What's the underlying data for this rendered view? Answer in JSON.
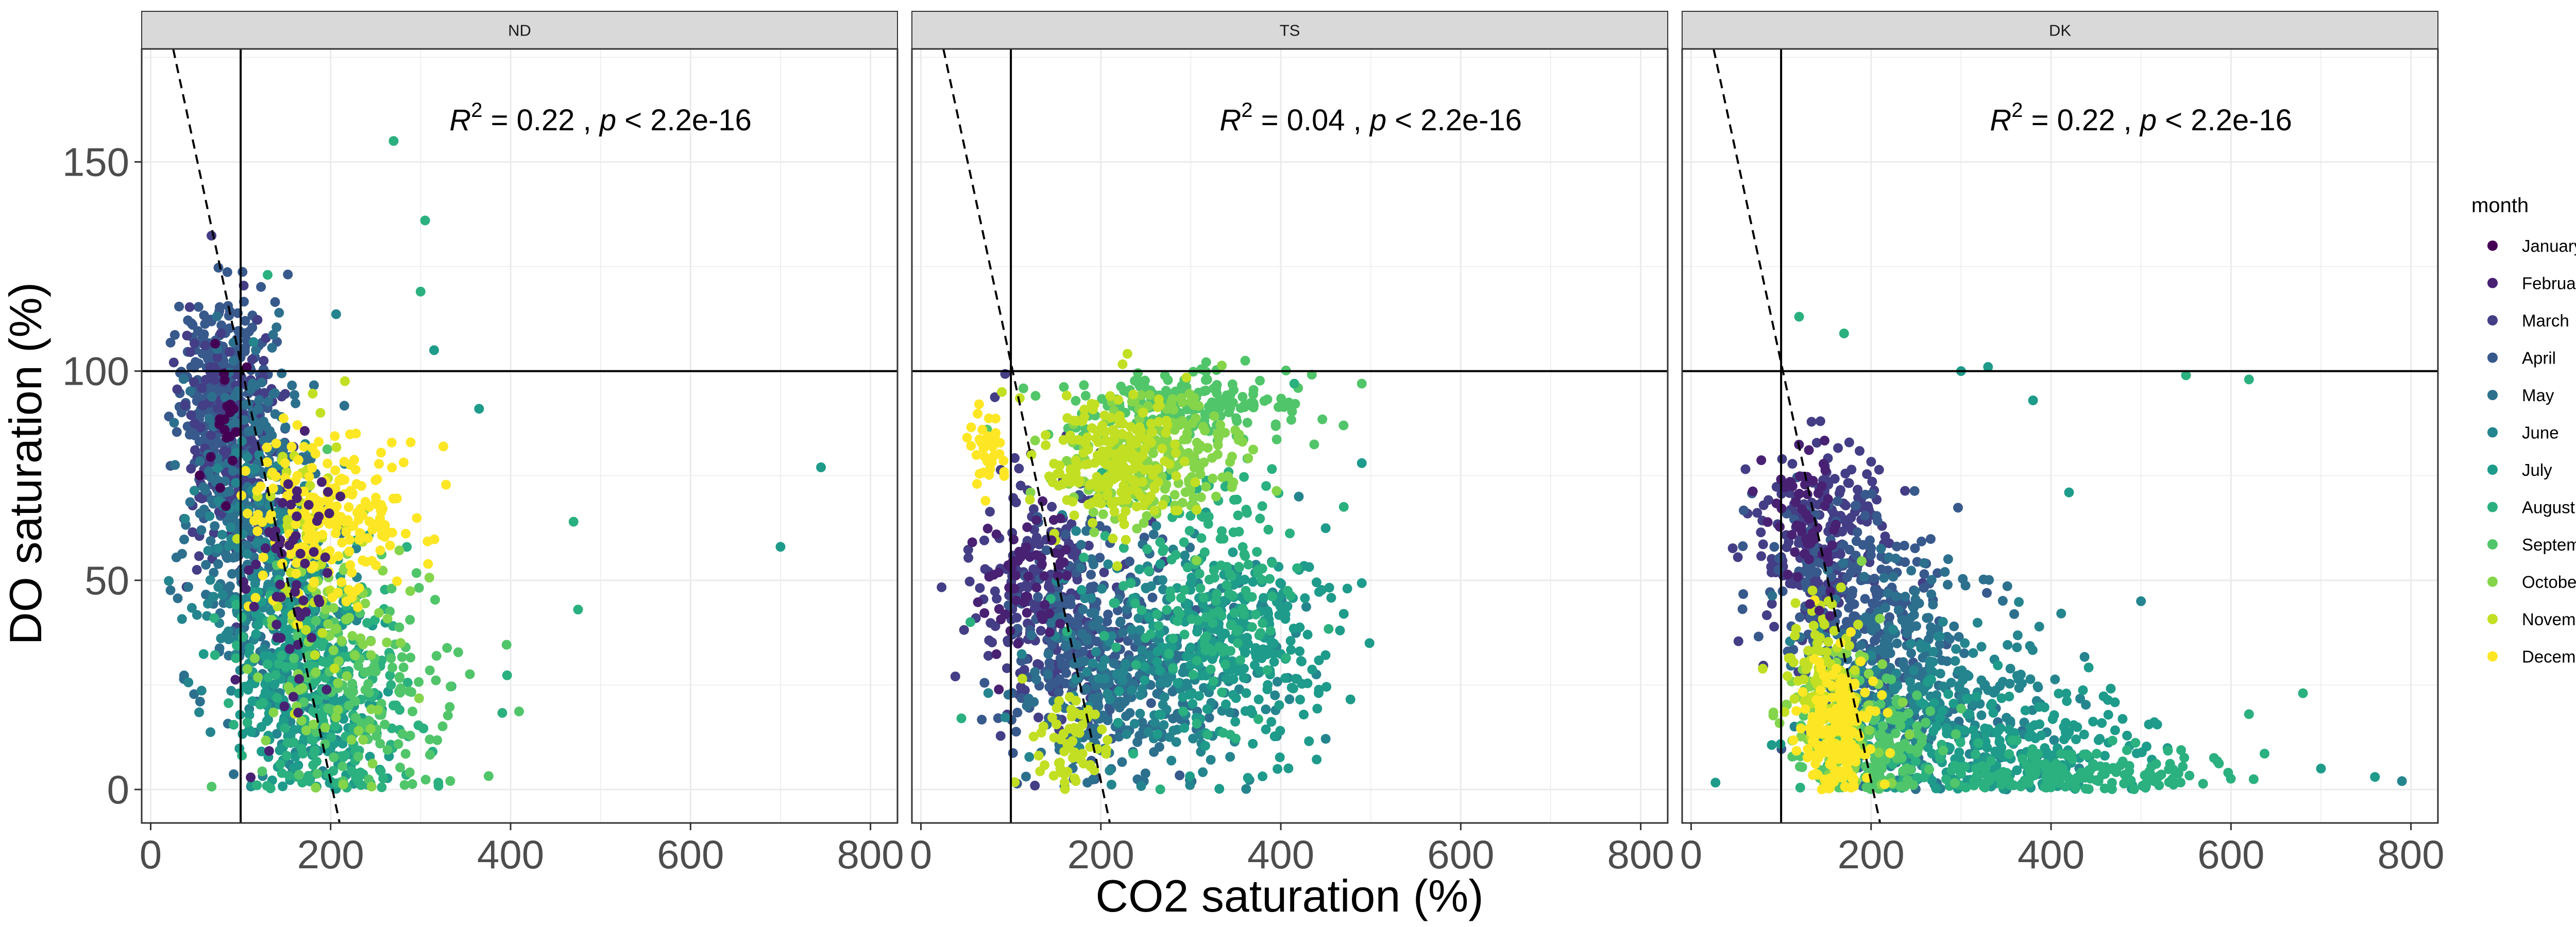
{
  "chart_data": {
    "type": "scatter",
    "xlabel": "CO2 saturation (%)",
    "ylabel": "DO saturation (%)",
    "xlim": [
      -10,
      830
    ],
    "ylim": [
      -8,
      177
    ],
    "x_ticks": [
      0,
      200,
      400,
      600,
      800
    ],
    "y_ticks": [
      0,
      50,
      100,
      150
    ],
    "grid": true,
    "reference_lines": {
      "vertical_x": 100,
      "horizontal_y": 100
    },
    "legend": {
      "title": "month",
      "position": "right",
      "entries": [
        {
          "label": "January",
          "color": "#440154"
        },
        {
          "label": "February",
          "color": "#482173"
        },
        {
          "label": "March",
          "color": "#433E85"
        },
        {
          "label": "April",
          "color": "#38598C"
        },
        {
          "label": "May",
          "color": "#2D708E"
        },
        {
          "label": "June",
          "color": "#25858E"
        },
        {
          "label": "July",
          "color": "#1E9B8A"
        },
        {
          "label": "August",
          "color": "#2BB07F"
        },
        {
          "label": "September",
          "color": "#51C56A"
        },
        {
          "label": "October",
          "color": "#85D54A"
        },
        {
          "label": "November",
          "color": "#C2DF23"
        },
        {
          "label": "December",
          "color": "#FDE725"
        }
      ]
    },
    "facets": [
      {
        "name": "ND",
        "annotation": {
          "r2": "0.22",
          "p": "< 2.2e-16"
        },
        "fit_line": {
          "x1": 25,
          "y1": 177,
          "x2": 210,
          "y2": -8
        },
        "clusters": [
          {
            "month": "April",
            "cx": 80,
            "cy": 95,
            "sx": 25,
            "sy": 12,
            "n": 320
          },
          {
            "month": "March",
            "cx": 95,
            "cy": 80,
            "sx": 28,
            "sy": 15,
            "n": 220
          },
          {
            "month": "May",
            "cx": 110,
            "cy": 65,
            "sx": 35,
            "sy": 20,
            "n": 280
          },
          {
            "month": "June",
            "cx": 140,
            "cy": 45,
            "sx": 40,
            "sy": 20,
            "n": 260
          },
          {
            "month": "July",
            "cx": 170,
            "cy": 25,
            "sx": 40,
            "sy": 15,
            "n": 260
          },
          {
            "month": "August",
            "cx": 200,
            "cy": 20,
            "sx": 50,
            "sy": 15,
            "n": 200
          },
          {
            "month": "September",
            "cx": 250,
            "cy": 25,
            "sx": 60,
            "sy": 15,
            "n": 120
          },
          {
            "month": "October",
            "cx": 200,
            "cy": 35,
            "sx": 40,
            "sy": 15,
            "n": 80
          },
          {
            "month": "November",
            "cx": 170,
            "cy": 60,
            "sx": 25,
            "sy": 15,
            "n": 60
          },
          {
            "month": "December",
            "cx": 200,
            "cy": 65,
            "sx": 45,
            "sy": 10,
            "n": 220
          },
          {
            "month": "February",
            "cx": 150,
            "cy": 50,
            "sx": 30,
            "sy": 15,
            "n": 60
          },
          {
            "month": "January",
            "cx": 90,
            "cy": 90,
            "sx": 20,
            "sy": 10,
            "n": 20
          }
        ],
        "extra_points": [
          {
            "month": "August",
            "x": 270,
            "y": 155
          },
          {
            "month": "August",
            "x": 305,
            "y": 136
          },
          {
            "month": "August",
            "x": 300,
            "y": 119
          },
          {
            "month": "July",
            "x": 745,
            "y": 77
          },
          {
            "month": "July",
            "x": 700,
            "y": 58
          },
          {
            "month": "August",
            "x": 470,
            "y": 64
          },
          {
            "month": "August",
            "x": 475,
            "y": 43
          },
          {
            "month": "July",
            "x": 315,
            "y": 105
          },
          {
            "month": "August",
            "x": 130,
            "y": 123
          },
          {
            "month": "July",
            "x": 365,
            "y": 91
          }
        ]
      },
      {
        "name": "TS",
        "annotation": {
          "r2": "0.04",
          "p": "< 2.2e-16"
        },
        "fit_line": {
          "x1": 25,
          "y1": 177,
          "x2": 210,
          "y2": -8
        },
        "clusters": [
          {
            "month": "March",
            "cx": 140,
            "cy": 45,
            "sx": 40,
            "sy": 15,
            "n": 220
          },
          {
            "month": "April",
            "cx": 180,
            "cy": 35,
            "sx": 45,
            "sy": 15,
            "n": 220
          },
          {
            "month": "May",
            "cx": 220,
            "cy": 25,
            "sx": 50,
            "sy": 15,
            "n": 220
          },
          {
            "month": "June",
            "cx": 280,
            "cy": 30,
            "sx": 60,
            "sy": 15,
            "n": 200
          },
          {
            "month": "July",
            "cx": 350,
            "cy": 35,
            "sx": 50,
            "sy": 12,
            "n": 260
          },
          {
            "month": "August",
            "cx": 320,
            "cy": 50,
            "sx": 50,
            "sy": 15,
            "n": 180
          },
          {
            "month": "September",
            "cx": 300,
            "cy": 92,
            "sx": 70,
            "sy": 4,
            "n": 180
          },
          {
            "month": "October",
            "cx": 260,
            "cy": 80,
            "sx": 50,
            "sy": 7,
            "n": 240
          },
          {
            "month": "November",
            "cx": 210,
            "cy": 78,
            "sx": 35,
            "sy": 8,
            "n": 220
          },
          {
            "month": "December",
            "cx": 75,
            "cy": 82,
            "sx": 12,
            "sy": 5,
            "n": 40
          },
          {
            "month": "November",
            "cx": 160,
            "cy": 12,
            "sx": 25,
            "sy": 6,
            "n": 60
          },
          {
            "month": "February",
            "cx": 120,
            "cy": 50,
            "sx": 25,
            "sy": 10,
            "n": 60
          }
        ],
        "extra_points": [
          {
            "month": "September",
            "x": 490,
            "y": 97
          },
          {
            "month": "August",
            "x": 415,
            "y": 97
          },
          {
            "month": "July",
            "x": 490,
            "y": 78
          },
          {
            "month": "June",
            "x": 420,
            "y": 70
          },
          {
            "month": "August",
            "x": 45,
            "y": 17
          },
          {
            "month": "August",
            "x": 55,
            "y": 40
          },
          {
            "month": "November",
            "x": 90,
            "y": 95
          }
        ]
      },
      {
        "name": "DK",
        "annotation": {
          "r2": "0.22",
          "p": "< 2.2e-16"
        },
        "fit_line": {
          "x1": 25,
          "y1": 177,
          "x2": 210,
          "y2": -8
        },
        "clusters": [
          {
            "month": "March",
            "cx": 150,
            "cy": 60,
            "sx": 35,
            "sy": 12,
            "n": 220
          },
          {
            "month": "April",
            "cx": 180,
            "cy": 45,
            "sx": 45,
            "sy": 12,
            "n": 220
          },
          {
            "month": "May",
            "cx": 230,
            "cy": 30,
            "sx": 50,
            "sy": 12,
            "n": 220
          },
          {
            "month": "June",
            "cx": 280,
            "cy": 20,
            "sx": 70,
            "sy": 10,
            "n": 220
          },
          {
            "month": "July",
            "cx": 330,
            "cy": 10,
            "sx": 90,
            "sy": 7,
            "n": 240
          },
          {
            "month": "August",
            "cx": 400,
            "cy": 4,
            "sx": 100,
            "sy": 3,
            "n": 200
          },
          {
            "month": "September",
            "cx": 200,
            "cy": 10,
            "sx": 40,
            "sy": 6,
            "n": 160
          },
          {
            "month": "October",
            "cx": 160,
            "cy": 20,
            "sx": 30,
            "sy": 10,
            "n": 80
          },
          {
            "month": "November",
            "cx": 145,
            "cy": 30,
            "sx": 20,
            "sy": 8,
            "n": 80
          },
          {
            "month": "December",
            "cx": 165,
            "cy": 15,
            "sx": 20,
            "sy": 8,
            "n": 200
          },
          {
            "month": "February",
            "cx": 130,
            "cy": 65,
            "sx": 20,
            "sy": 10,
            "n": 60
          }
        ],
        "extra_points": [
          {
            "month": "August",
            "x": 120,
            "y": 113
          },
          {
            "month": "August",
            "x": 170,
            "y": 109
          },
          {
            "month": "July",
            "x": 300,
            "y": 100
          },
          {
            "month": "July",
            "x": 330,
            "y": 101
          },
          {
            "month": "August",
            "x": 550,
            "y": 99
          },
          {
            "month": "August",
            "x": 620,
            "y": 98
          },
          {
            "month": "July",
            "x": 380,
            "y": 93
          },
          {
            "month": "June",
            "x": 790,
            "y": 2
          },
          {
            "month": "July",
            "x": 760,
            "y": 3
          },
          {
            "month": "July",
            "x": 700,
            "y": 5
          },
          {
            "month": "August",
            "x": 680,
            "y": 23
          },
          {
            "month": "August",
            "x": 620,
            "y": 18
          },
          {
            "month": "June",
            "x": 500,
            "y": 45
          },
          {
            "month": "July",
            "x": 420,
            "y": 71
          }
        ]
      }
    ]
  }
}
